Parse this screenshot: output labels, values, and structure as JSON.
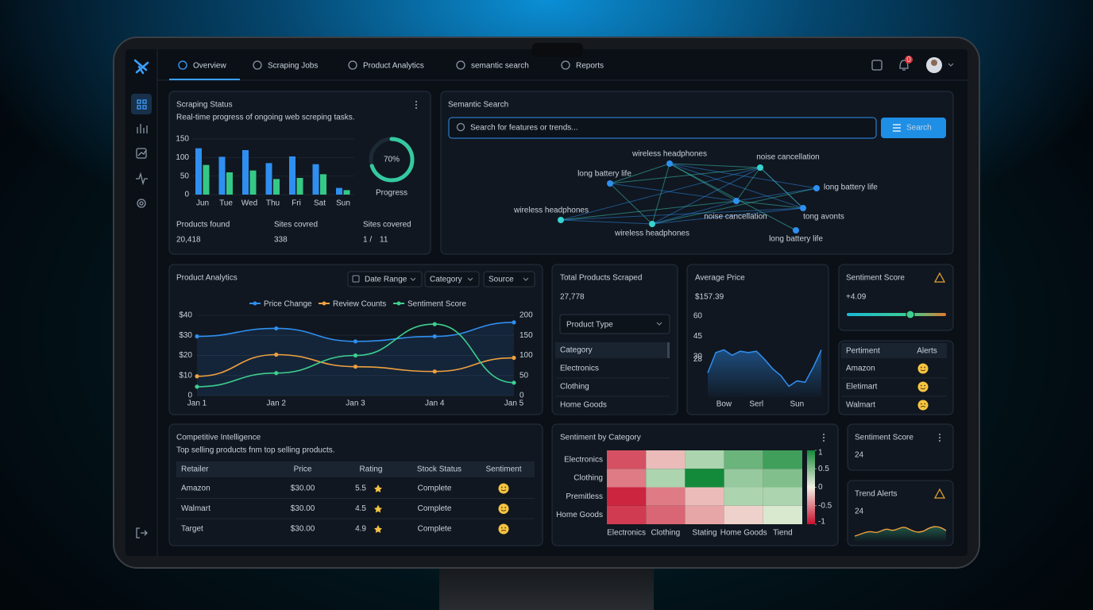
{
  "nav": {
    "tabs": [
      "Overview",
      "Scraping Jobs",
      "Product Analytics",
      "semantic search",
      "Reports"
    ],
    "notifications": 0
  },
  "scraping_status": {
    "title": "Scraping Status",
    "subtitle": "Real-time progress of ongoing web screping tasks.",
    "chart": {
      "type": "bar",
      "categories": [
        "Jun",
        "Tue",
        "Wed",
        "Thu",
        "Fri",
        "Sat",
        "Sun"
      ],
      "series": [
        {
          "color": "#2f8ff0",
          "values": [
            125,
            102,
            120,
            85,
            103,
            82,
            18
          ]
        },
        {
          "color": "#35c987",
          "values": [
            80,
            60,
            65,
            42,
            45,
            55,
            12
          ]
        }
      ],
      "ylim": [
        0,
        150
      ],
      "yticks": [
        0,
        50,
        100,
        150
      ]
    },
    "progress": {
      "type": "donut",
      "value": 70,
      "value_label": "70%",
      "label": "Progress",
      "color": "#35c9a0"
    },
    "stats": [
      {
        "label": "Products found",
        "value": "20,418"
      },
      {
        "label": "Sites covred",
        "value": "338"
      },
      {
        "label": "Sites covered",
        "value": [
          "1 /",
          "11"
        ]
      }
    ]
  },
  "semantic_search": {
    "title": "Semantic Search",
    "placeholder": "Search for features or trends...",
    "button": "Search",
    "nodes": [
      "wireless headphones",
      "noise cancellation",
      "long battery life",
      "long battery life",
      "wireless headphones",
      "noise cancellation",
      "tong avonts",
      "wireless headphones",
      "long battery life"
    ]
  },
  "product_analytics": {
    "title": "Product Analytics",
    "filters": [
      "Date Range",
      "Category",
      "Source"
    ],
    "chart": {
      "type": "line",
      "categories": [
        "Jan 1",
        "Jan 2",
        "Jan 3",
        "Jan 4",
        "Jan 5"
      ],
      "series": [
        {
          "name": "Price Change",
          "color": "#2f8ff0",
          "values": [
            29.5,
            33.5,
            27,
            29.5,
            36.5
          ]
        },
        {
          "name": "Review Counts",
          "color": "#f0a040",
          "values": [
            48,
            102,
            72,
            60,
            94
          ],
          "axis": "y2"
        },
        {
          "name": "Sentiment Score",
          "color": "#3ecf8e",
          "values": [
            22,
            56,
            100,
            178,
            32
          ],
          "axis": "y2"
        }
      ],
      "ylim": [
        0,
        40
      ],
      "yticks": [
        0,
        {
          "value": 10,
          "label": "$10"
        },
        {
          "value": 20,
          "label": "$20"
        },
        {
          "value": 30,
          "label": "$30"
        },
        {
          "value": 40,
          "label": "$40"
        }
      ],
      "y2lim": [
        0,
        200
      ],
      "y2ticks": [
        0,
        50,
        100,
        150,
        200
      ]
    }
  },
  "total_products": {
    "title": "Total Products Scraped",
    "value": "27,778",
    "dropdown": "Product Type",
    "list_header": "Category",
    "items": [
      "Electronics",
      "Clothing",
      "Home Goods"
    ]
  },
  "average_price": {
    "title": "Average Price",
    "value": "$157.39",
    "chart": {
      "type": "area",
      "categories": [
        null,
        null,
        "Bow",
        null,
        null,
        null,
        "Serl",
        null,
        null,
        null,
        null,
        "Sun",
        null,
        null,
        null
      ],
      "values": [
        18,
        33,
        35,
        31,
        34,
        33,
        34,
        28,
        21,
        16,
        8,
        12,
        11,
        22,
        35
      ],
      "ylim": [
        0,
        65
      ],
      "yticks": [
        28,
        30,
        45,
        60
      ],
      "color": "#2f8ff0"
    }
  },
  "sentiment_score": {
    "title": "Sentiment Score",
    "value": "+4.09"
  },
  "pertiment_table": {
    "headers": [
      "Pertiment",
      "Alerts"
    ],
    "rows": [
      "Amazon",
      "Eletimart",
      "Walmart"
    ]
  },
  "competitive": {
    "title": "Competitive Intelligence",
    "subtitle": "Top selling products fnm top selling products.",
    "headers": [
      "Retailer",
      "Price",
      "Rating",
      "Stock Status",
      "Sentiment"
    ],
    "rows": [
      [
        "Amazon",
        "$30.00",
        "5.5",
        "Complete"
      ],
      [
        "Walmart",
        "$30.00",
        "4.5",
        "Complete"
      ],
      [
        "Target",
        "$30.00",
        "4.9",
        "Complete"
      ]
    ]
  },
  "sentiment_by_category": {
    "title": "Sentiment by Category",
    "chart": {
      "type": "heatmap",
      "rows": [
        "Electronics",
        "Clothing",
        "Premitless",
        "Home Goods"
      ],
      "columns": [
        "Electronics",
        "Clothing",
        "Stating",
        "Home Goods",
        "Tiend"
      ],
      "values": [
        [
          -0.7,
          -0.2,
          0.3,
          0.6,
          0.8
        ],
        [
          -0.5,
          0.3,
          1,
          0.4,
          0.5
        ],
        [
          -0.9,
          -0.5,
          -0.2,
          0.3,
          0.3
        ],
        [
          -0.8,
          -0.6,
          -0.3,
          -0.1,
          0.1
        ]
      ],
      "zlim": [
        -1,
        1
      ],
      "zticks": [
        1,
        0.5,
        0,
        -0.5,
        -1
      ]
    }
  },
  "sentiment_score_2": {
    "title": "Sentiment Score",
    "value": "24"
  },
  "trend_alerts": {
    "title": "Trend Alerts",
    "value": "24"
  }
}
